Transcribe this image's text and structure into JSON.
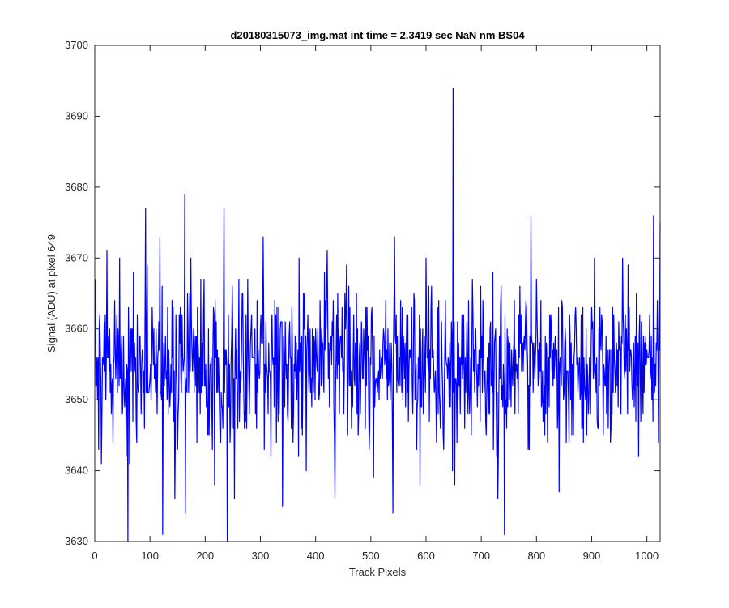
{
  "chart_data": {
    "type": "line",
    "title": "d20180315073_img.mat int time = 2.3419 sec  NaN nm BS04",
    "xlabel": "Track Pixels",
    "ylabel": "Signal (ADU) at pixel 649",
    "xlim": [
      0,
      1024
    ],
    "ylim": [
      3630,
      3700
    ],
    "xticks": [
      "0",
      "100",
      "200",
      "300",
      "400",
      "500",
      "600",
      "700",
      "800",
      "900",
      "1000"
    ],
    "yticks": [
      "3630",
      "3640",
      "3650",
      "3660",
      "3670",
      "3680",
      "3690",
      "3700"
    ],
    "grid": false,
    "box": true,
    "line_color": "#0000ff",
    "series": [
      {
        "num_points": 1024,
        "mean": 3655,
        "noise_amplitude": 7,
        "min": 3630,
        "max": 3694,
        "notable_points": [
          {
            "x": 1,
            "y": 3667
          },
          {
            "x": 5,
            "y": 3650
          },
          {
            "x": 7,
            "y": 3643
          },
          {
            "x": 22,
            "y": 3671
          },
          {
            "x": 45,
            "y": 3670
          },
          {
            "x": 60,
            "y": 3630
          },
          {
            "x": 63,
            "y": 3641
          },
          {
            "x": 92,
            "y": 3677
          },
          {
            "x": 118,
            "y": 3673
          },
          {
            "x": 123,
            "y": 3631
          },
          {
            "x": 145,
            "y": 3636
          },
          {
            "x": 163,
            "y": 3679
          },
          {
            "x": 164,
            "y": 3634
          },
          {
            "x": 217,
            "y": 3638
          },
          {
            "x": 234,
            "y": 3677
          },
          {
            "x": 240,
            "y": 3630
          },
          {
            "x": 253,
            "y": 3636
          },
          {
            "x": 305,
            "y": 3673
          },
          {
            "x": 340,
            "y": 3635
          },
          {
            "x": 421,
            "y": 3671
          },
          {
            "x": 435,
            "y": 3636
          },
          {
            "x": 505,
            "y": 3639
          },
          {
            "x": 540,
            "y": 3634
          },
          {
            "x": 543,
            "y": 3673
          },
          {
            "x": 589,
            "y": 3638
          },
          {
            "x": 600,
            "y": 3670
          },
          {
            "x": 649,
            "y": 3694
          },
          {
            "x": 652,
            "y": 3638
          },
          {
            "x": 730,
            "y": 3636
          },
          {
            "x": 742,
            "y": 3631
          },
          {
            "x": 790,
            "y": 3676
          },
          {
            "x": 841,
            "y": 3637
          },
          {
            "x": 905,
            "y": 3670
          },
          {
            "x": 1012,
            "y": 3676
          },
          {
            "x": 1021,
            "y": 3644
          },
          {
            "x": 1024,
            "y": 3675
          }
        ]
      }
    ]
  }
}
